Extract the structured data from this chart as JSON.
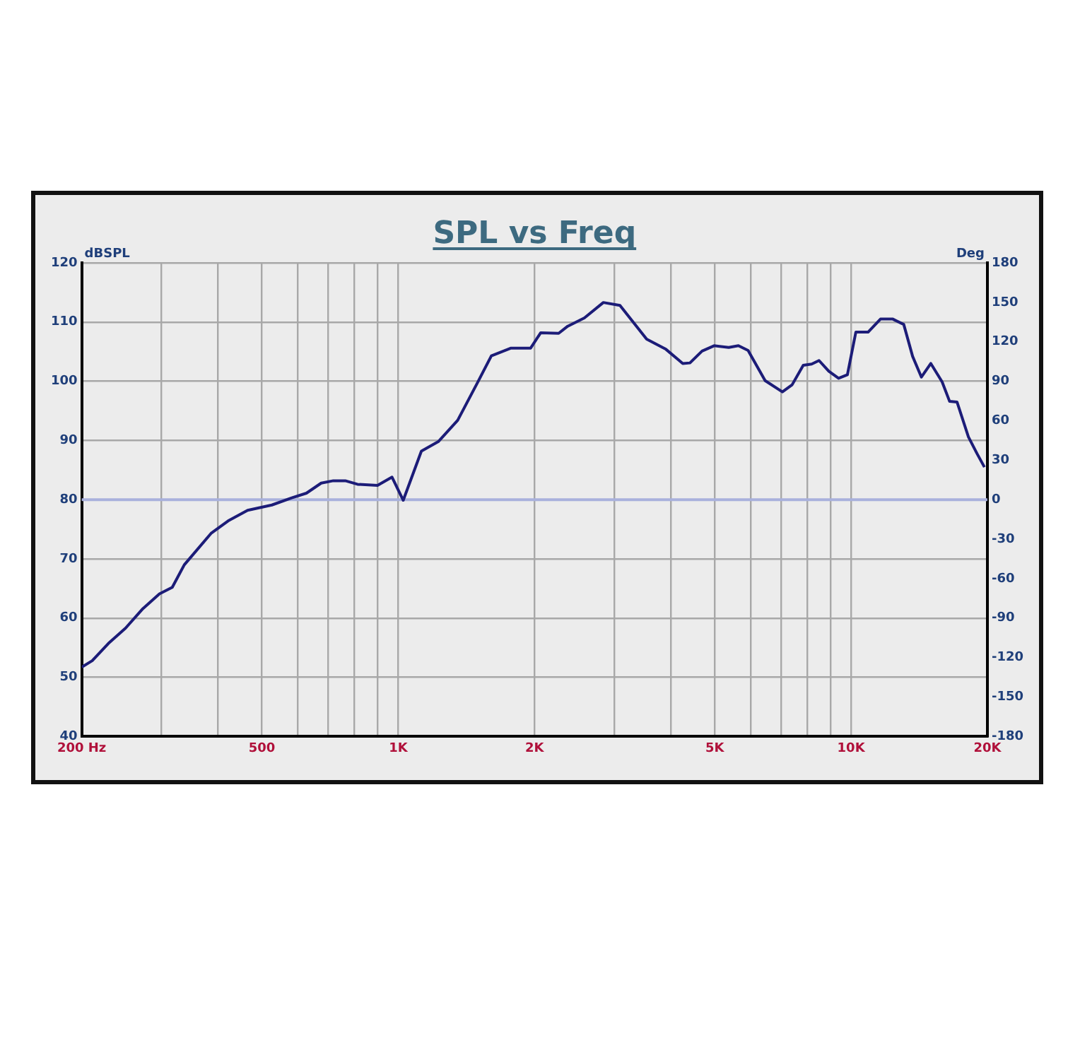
{
  "chart_data": {
    "type": "line",
    "title": "SPL vs Freq",
    "ylabel": "dBSPL",
    "y2label": "Deg",
    "x": [
      200,
      211,
      229,
      250,
      273,
      297,
      317,
      337,
      386,
      421,
      465,
      526,
      582,
      627,
      676,
      719,
      764,
      813,
      900,
      969,
      1026,
      1125,
      1226,
      1353,
      1495,
      1606,
      1775,
      1961,
      2064,
      2261,
      2368,
      2577,
      2838,
      3088,
      3537,
      3901,
      4250,
      4408,
      4688,
      4984,
      5369,
      5640,
      5924,
      6461,
      7053,
      7410,
      7842,
      8186,
      8497,
      8929,
      9385,
      9816,
      10246,
      10903,
      11613,
      12368,
      13072,
      13675,
      14301,
      15002,
      15890,
      16506,
      17139,
      18163,
      18970,
      19703
    ],
    "series": [
      {
        "color": "#1c1c78",
        "values": [
          51.7,
          52.8,
          55.7,
          58.3,
          61.6,
          64.1,
          65.2,
          69.0,
          74.3,
          76.4,
          78.2,
          79.1,
          80.3,
          81.1,
          82.8,
          83.2,
          83.2,
          82.6,
          82.4,
          83.8,
          79.9,
          88.2,
          89.8,
          93.4,
          99.7,
          104.3,
          105.6,
          105.6,
          108.2,
          108.1,
          109.3,
          110.7,
          113.3,
          112.8,
          107.1,
          105.4,
          103.0,
          103.1,
          105.1,
          106.0,
          105.7,
          106.0,
          105.2,
          100.1,
          98.2,
          99.4,
          102.7,
          102.9,
          103.5,
          101.7,
          100.5,
          101.1,
          108.3,
          108.3,
          110.5,
          110.5,
          109.6,
          104.2,
          100.7,
          103.0,
          99.9,
          96.6,
          96.5,
          90.6,
          87.8,
          85.5
        ]
      }
    ],
    "log": "x",
    "xlim": [
      200,
      20000
    ],
    "xticks": [
      {
        "value": 200,
        "label": "200 Hz"
      },
      {
        "value": 300,
        "label": null
      },
      {
        "value": 400,
        "label": null
      },
      {
        "value": 500,
        "label": "500"
      },
      {
        "value": 600,
        "label": null
      },
      {
        "value": 700,
        "label": null
      },
      {
        "value": 800,
        "label": null
      },
      {
        "value": 900,
        "label": null
      },
      {
        "value": 1000,
        "label": "1K"
      },
      {
        "value": 2000,
        "label": "2K"
      },
      {
        "value": 3000,
        "label": null
      },
      {
        "value": 4000,
        "label": null
      },
      {
        "value": 5000,
        "label": "5K"
      },
      {
        "value": 6000,
        "label": null
      },
      {
        "value": 7000,
        "label": null
      },
      {
        "value": 8000,
        "label": null
      },
      {
        "value": 9000,
        "label": null
      },
      {
        "value": 10000,
        "label": "10K"
      },
      {
        "value": 20000,
        "label": "20K"
      }
    ],
    "ylim": [
      40,
      120
    ],
    "yticks": [
      40,
      50,
      60,
      70,
      80,
      90,
      100,
      110,
      120
    ],
    "y2lim": [
      -180,
      180
    ],
    "y2ticks": [
      -180,
      -150,
      -120,
      -90,
      -60,
      -30,
      0,
      30,
      60,
      90,
      120,
      150,
      180
    ],
    "ref_lines": [
      {
        "axis": "y2",
        "value": 0,
        "color": "#a9b1dc"
      }
    ],
    "grid": true
  }
}
